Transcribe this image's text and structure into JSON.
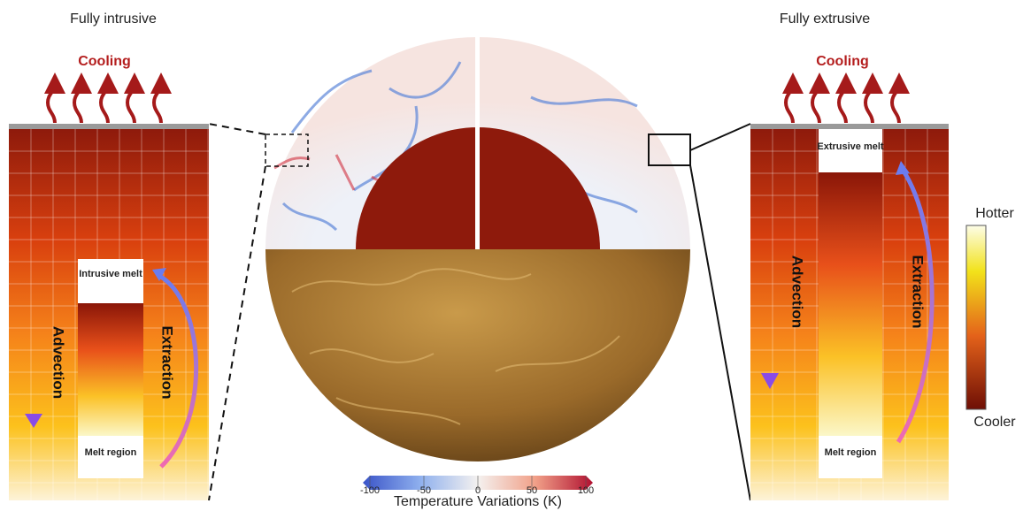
{
  "left_panel": {
    "title": "Fully intrusive",
    "cooling": "Cooling",
    "melt_box": "Intrusive melt",
    "melt_region": "Melt region",
    "advection": "Advection",
    "extraction": "Extraction"
  },
  "right_panel": {
    "title": "Fully extrusive",
    "cooling": "Cooling",
    "melt_box": "Extrusive melt",
    "melt_region": "Melt region",
    "advection": "Advection",
    "extraction": "Extraction"
  },
  "temperature_scale": {
    "top": "Hotter",
    "bottom": "Cooler"
  },
  "colorbar": {
    "label": "Temperature Variations (K)",
    "lim": [
      -100,
      100
    ],
    "ticks": [
      -100,
      -50,
      0,
      50,
      100
    ]
  }
}
